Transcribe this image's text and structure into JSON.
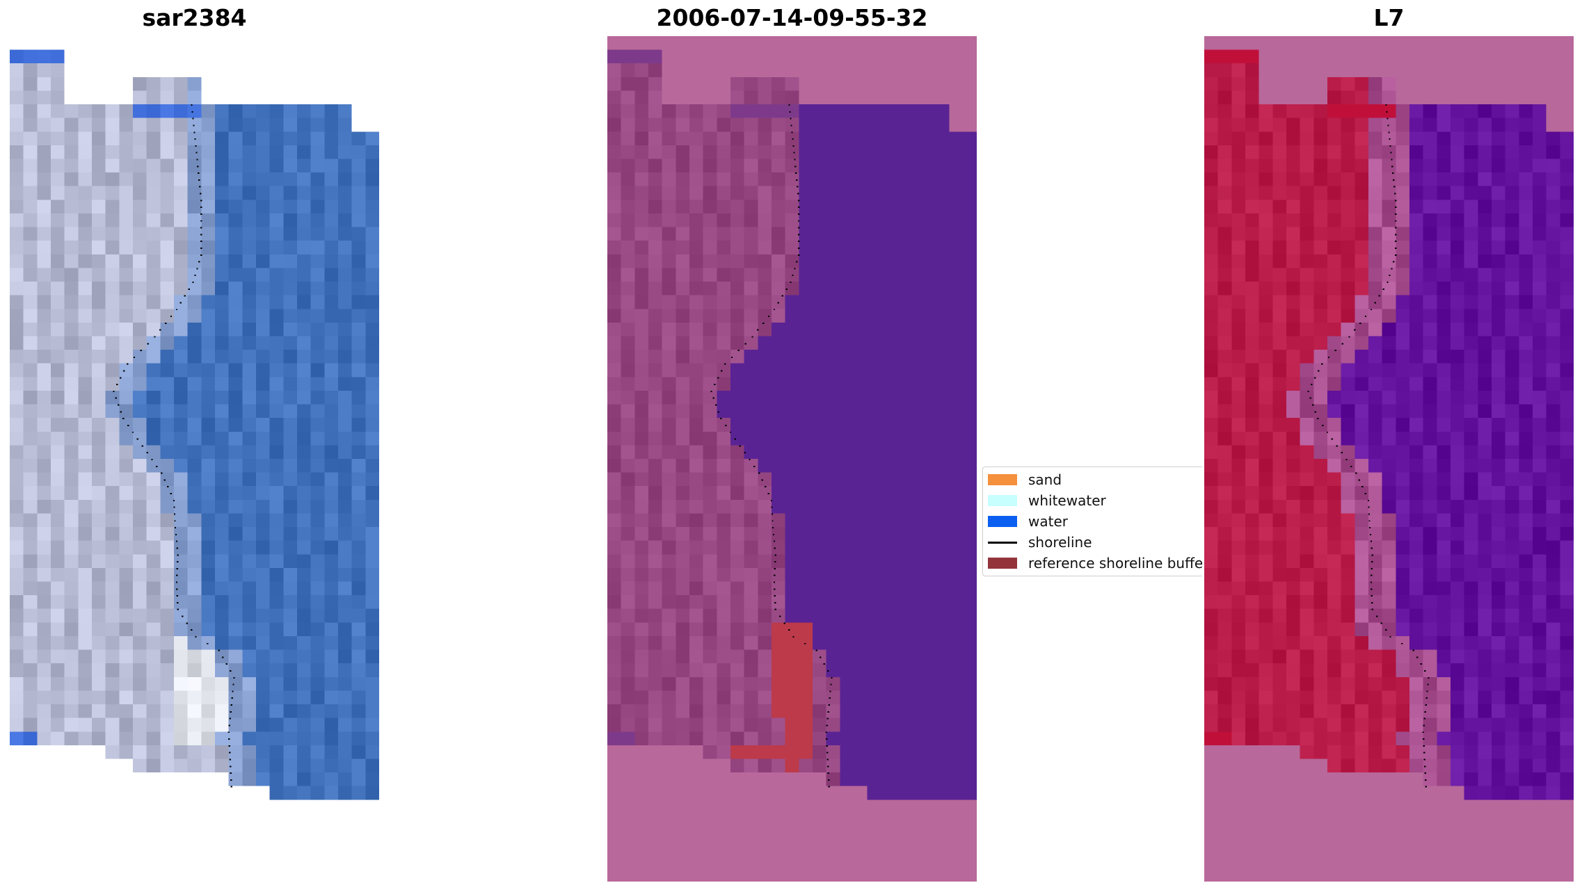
{
  "panels": [
    {
      "title": "sar2384",
      "mode": "rgb"
    },
    {
      "title": "2006-07-14-09-55-32",
      "mode": "classified"
    },
    {
      "title": "L7",
      "mode": "index"
    }
  ],
  "legend": {
    "items": [
      {
        "label": "sand",
        "color": "#f5903c",
        "kind": "patch"
      },
      {
        "label": "whitewater",
        "color": "#c6fffe",
        "kind": "patch"
      },
      {
        "label": "water",
        "color": "#0a5ff0",
        "kind": "patch"
      },
      {
        "label": "shoreline",
        "color": "#000000",
        "kind": "line"
      },
      {
        "label": "reference shoreline buffer",
        "color": "#93343a",
        "kind": "patch"
      }
    ]
  },
  "colors": {
    "nodata_pink": "#b8689a",
    "land_mauve": "#9e4f8a",
    "water_purple": "#5a2394",
    "rgb_water": "#4a7ac4",
    "rgb_sand": "#c3c8e0",
    "rgb_nodata_bright": "#4674e0",
    "index_land": "#c0234f",
    "index_water": "#6a1aa4",
    "buffer_red": "#bc3a4a",
    "shoreline_dots": "#000000"
  }
}
